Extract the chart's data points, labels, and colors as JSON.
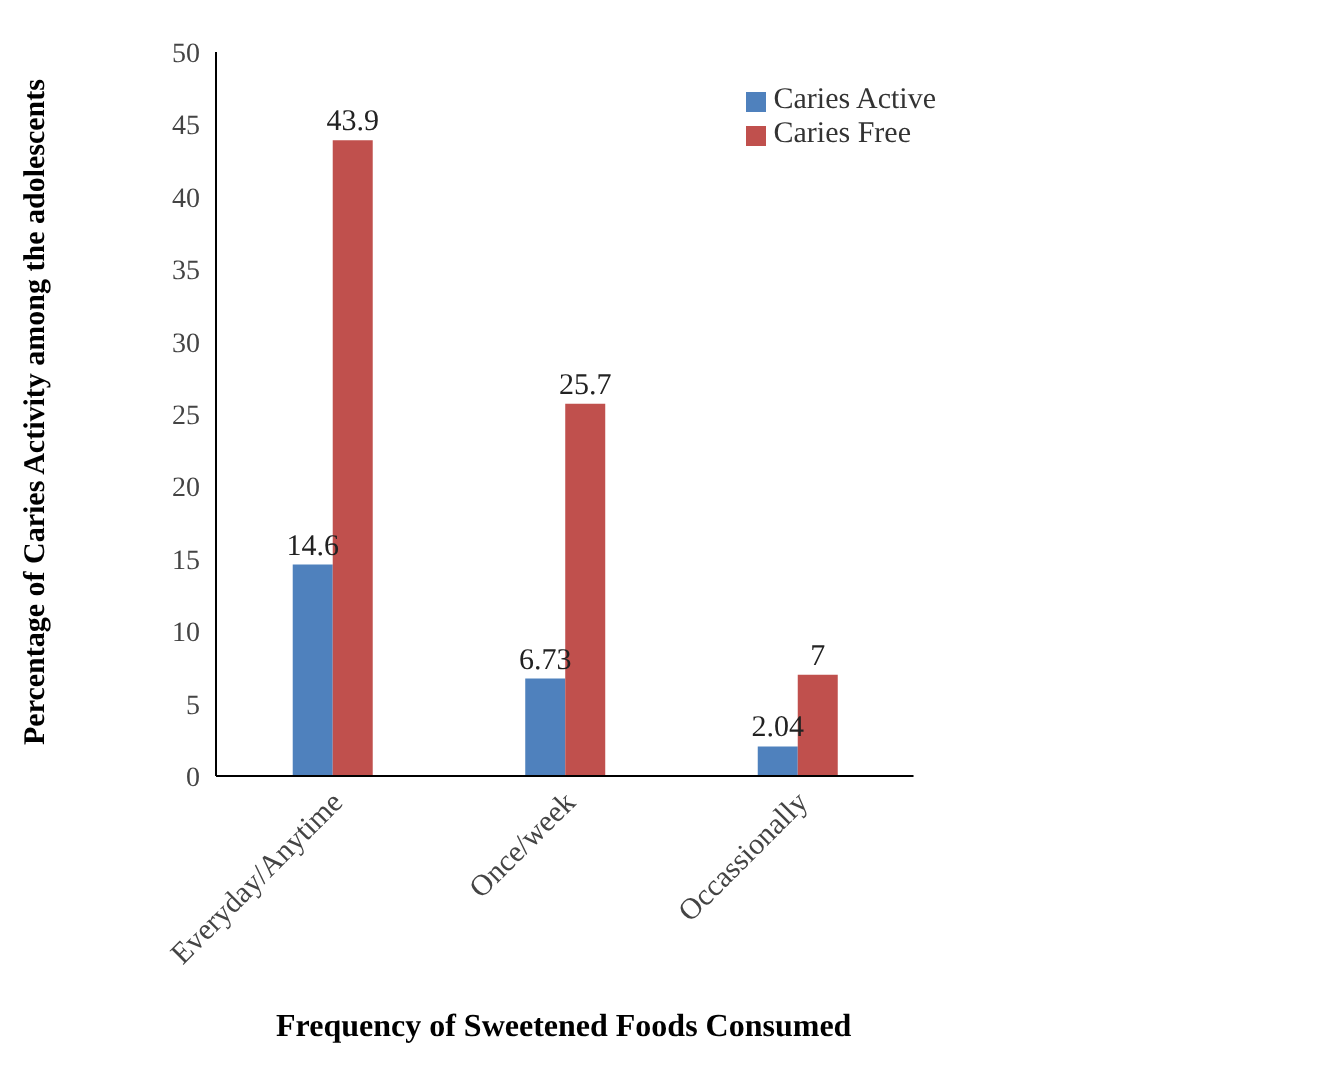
{
  "chart_data": {
    "type": "bar",
    "xlabel": "Frequency of Sweetened Foods Consumed",
    "ylabel": "Percentage of Caries Activity among the adolescents",
    "categories": [
      "Everyday/Anytime",
      "Once/week",
      "Occassionally"
    ],
    "series": [
      {
        "name": "Caries Active",
        "color": "#4f81bd",
        "values": [
          14.6,
          6.73,
          2.04
        ]
      },
      {
        "name": "Caries Free",
        "color": "#c0504d",
        "values": [
          43.9,
          25.7,
          7
        ]
      }
    ],
    "ylim": [
      0,
      50
    ],
    "yticks": [
      0,
      5,
      10,
      15,
      20,
      25,
      30,
      35,
      40,
      45,
      50
    ],
    "grid": false,
    "legend": "top right",
    "data_labels": true
  }
}
